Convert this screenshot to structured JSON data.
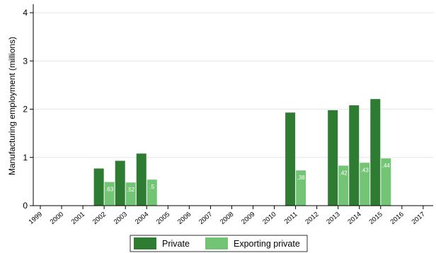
{
  "chart_data": {
    "type": "bar",
    "xlabel": "",
    "ylabel": "Manufacturing employment (millions)",
    "ylim": [
      0,
      4
    ],
    "yticks": [
      "0",
      "1",
      "2",
      "3",
      "4"
    ],
    "grid": "horizontal",
    "legend_position": "bottom",
    "categories": [
      "1999",
      "2000",
      "2001",
      "2002",
      "2003",
      "2004",
      "2005",
      "2006",
      "2007",
      "2008",
      "2009",
      "2010",
      "2011",
      "2012",
      "2013",
      "2014",
      "2015",
      "2016",
      "2017"
    ],
    "series": [
      {
        "name": "Private",
        "color": "#2e7b32",
        "values": [
          null,
          null,
          null,
          0.77,
          0.93,
          1.08,
          null,
          null,
          null,
          null,
          null,
          null,
          1.93,
          null,
          1.98,
          2.08,
          2.21,
          null,
          null
        ]
      },
      {
        "name": "Exporting private",
        "color": "#74c476",
        "values": [
          null,
          null,
          null,
          0.49,
          0.48,
          0.54,
          null,
          null,
          null,
          null,
          null,
          null,
          0.73,
          null,
          0.83,
          0.89,
          0.98,
          null,
          null
        ],
        "labels": [
          null,
          null,
          null,
          ".63",
          ".52",
          ".5",
          null,
          null,
          null,
          null,
          null,
          null,
          ".38",
          null,
          ".42",
          ".43",
          ".44",
          null,
          null
        ]
      }
    ]
  }
}
